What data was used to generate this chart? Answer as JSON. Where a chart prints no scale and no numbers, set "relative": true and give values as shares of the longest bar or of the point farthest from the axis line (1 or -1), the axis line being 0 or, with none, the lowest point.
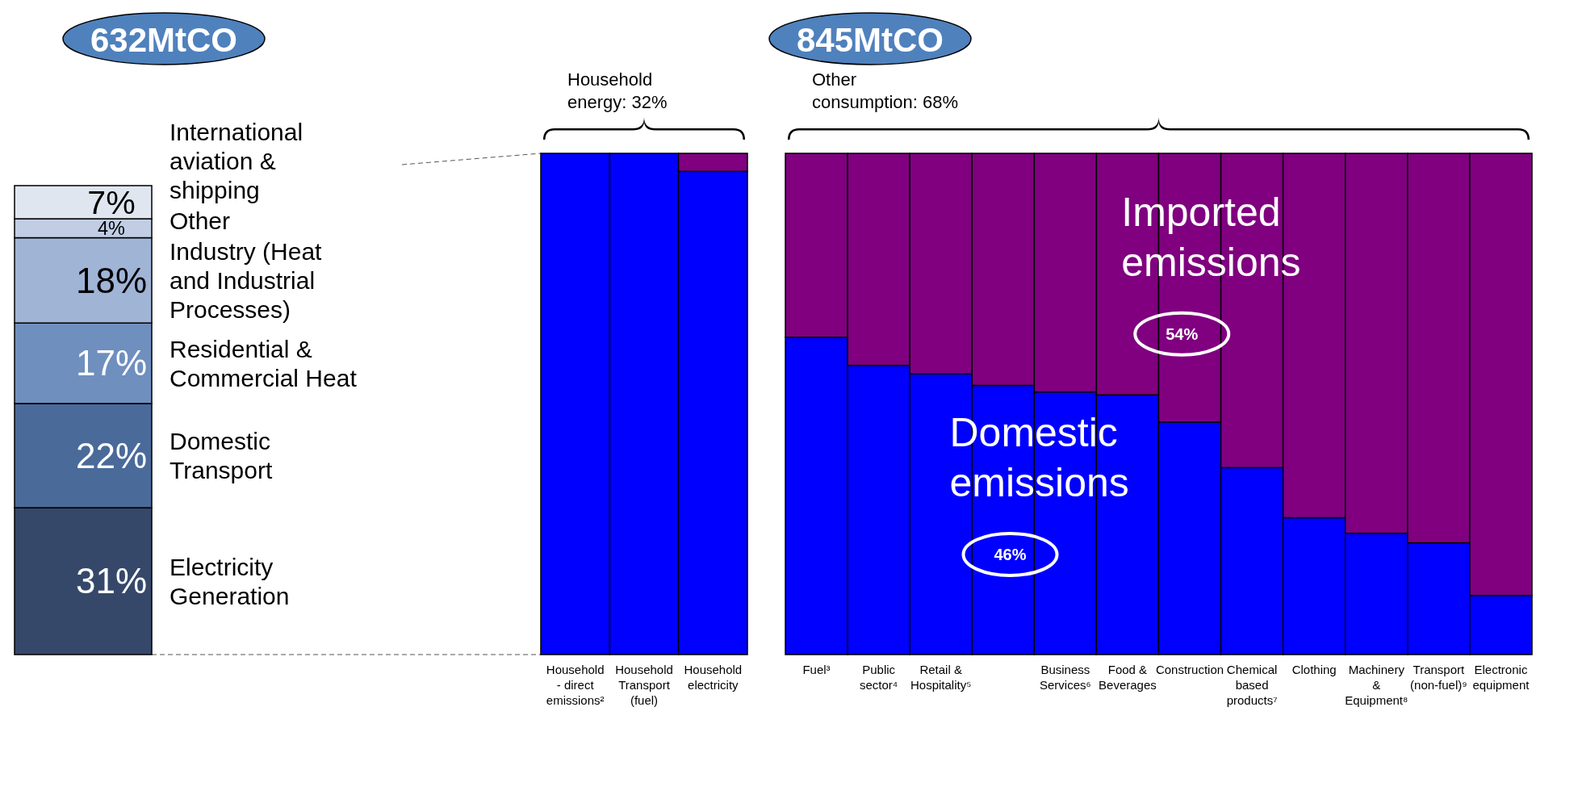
{
  "chart_data": [
    {
      "type": "bar",
      "stacked": true,
      "title": "632MtCO",
      "categories": [
        null
      ],
      "series": [
        {
          "name": "Electricity Generation",
          "color": "#36486a",
          "values": [
            31
          ],
          "value_labels": [
            "31%"
          ]
        },
        {
          "name": "Domestic Transport",
          "color": "#4a6a9a",
          "values": [
            22
          ],
          "value_labels": [
            "22%"
          ]
        },
        {
          "name": "Residential & Commercial Heat",
          "color": "#6f8fbf",
          "values": [
            17
          ],
          "value_labels": [
            "17%"
          ]
        },
        {
          "name": "Industry (Heat and Industrial Processes)",
          "color": "#a0b4d6",
          "values": [
            18
          ],
          "value_labels": [
            "18%"
          ]
        },
        {
          "name": "Other",
          "color": "#c0cde3",
          "values": [
            4
          ],
          "value_labels": [
            "4%"
          ]
        },
        {
          "name": "International aviation & shipping",
          "color": "#dfe6f0",
          "values": [
            7
          ],
          "value_labels": [
            "7%"
          ]
        }
      ]
    },
    {
      "type": "bar",
      "stacked": true,
      "relative": true,
      "annotations": [
        "Household energy: 32%"
      ],
      "categories": [
        "Household - direct emissions²",
        "Household Transport (fuel)",
        "Household electricity"
      ],
      "series": [
        {
          "color": "#0000ff",
          "values": [
            1,
            1,
            0.964
          ]
        },
        {
          "color": "#800080",
          "values": [
            0,
            0,
            0.036
          ]
        }
      ]
    },
    {
      "type": "bar",
      "stacked": true,
      "relative": true,
      "title": "845MtCO",
      "annotations": [
        "Other consumption: 68%",
        "46%",
        "54%"
      ],
      "categories": [
        "Fuel³",
        "Public sector⁴",
        "Retail & Hospitality⁵",
        null,
        "Business Services⁶",
        "Food & Beverages",
        "Construction",
        "Chemical based products⁷",
        "Clothing",
        "Machinery & Equipment⁸",
        "Transport (non-fuel)⁹",
        "Electronic equipment"
      ],
      "series": [
        {
          "name": "Domestic emissions",
          "color": "#0000ff",
          "values": [
            0.633,
            0.577,
            0.56,
            0.537,
            0.524,
            0.518,
            0.464,
            0.373,
            0.273,
            0.242,
            0.223,
            0.118
          ]
        },
        {
          "name": "Imported emissions",
          "color": "#800080",
          "values": [
            0.367,
            0.423,
            0.44,
            0.463,
            0.476,
            0.482,
            0.536,
            0.627,
            0.727,
            0.758,
            0.777,
            0.882
          ]
        }
      ]
    }
  ]
}
